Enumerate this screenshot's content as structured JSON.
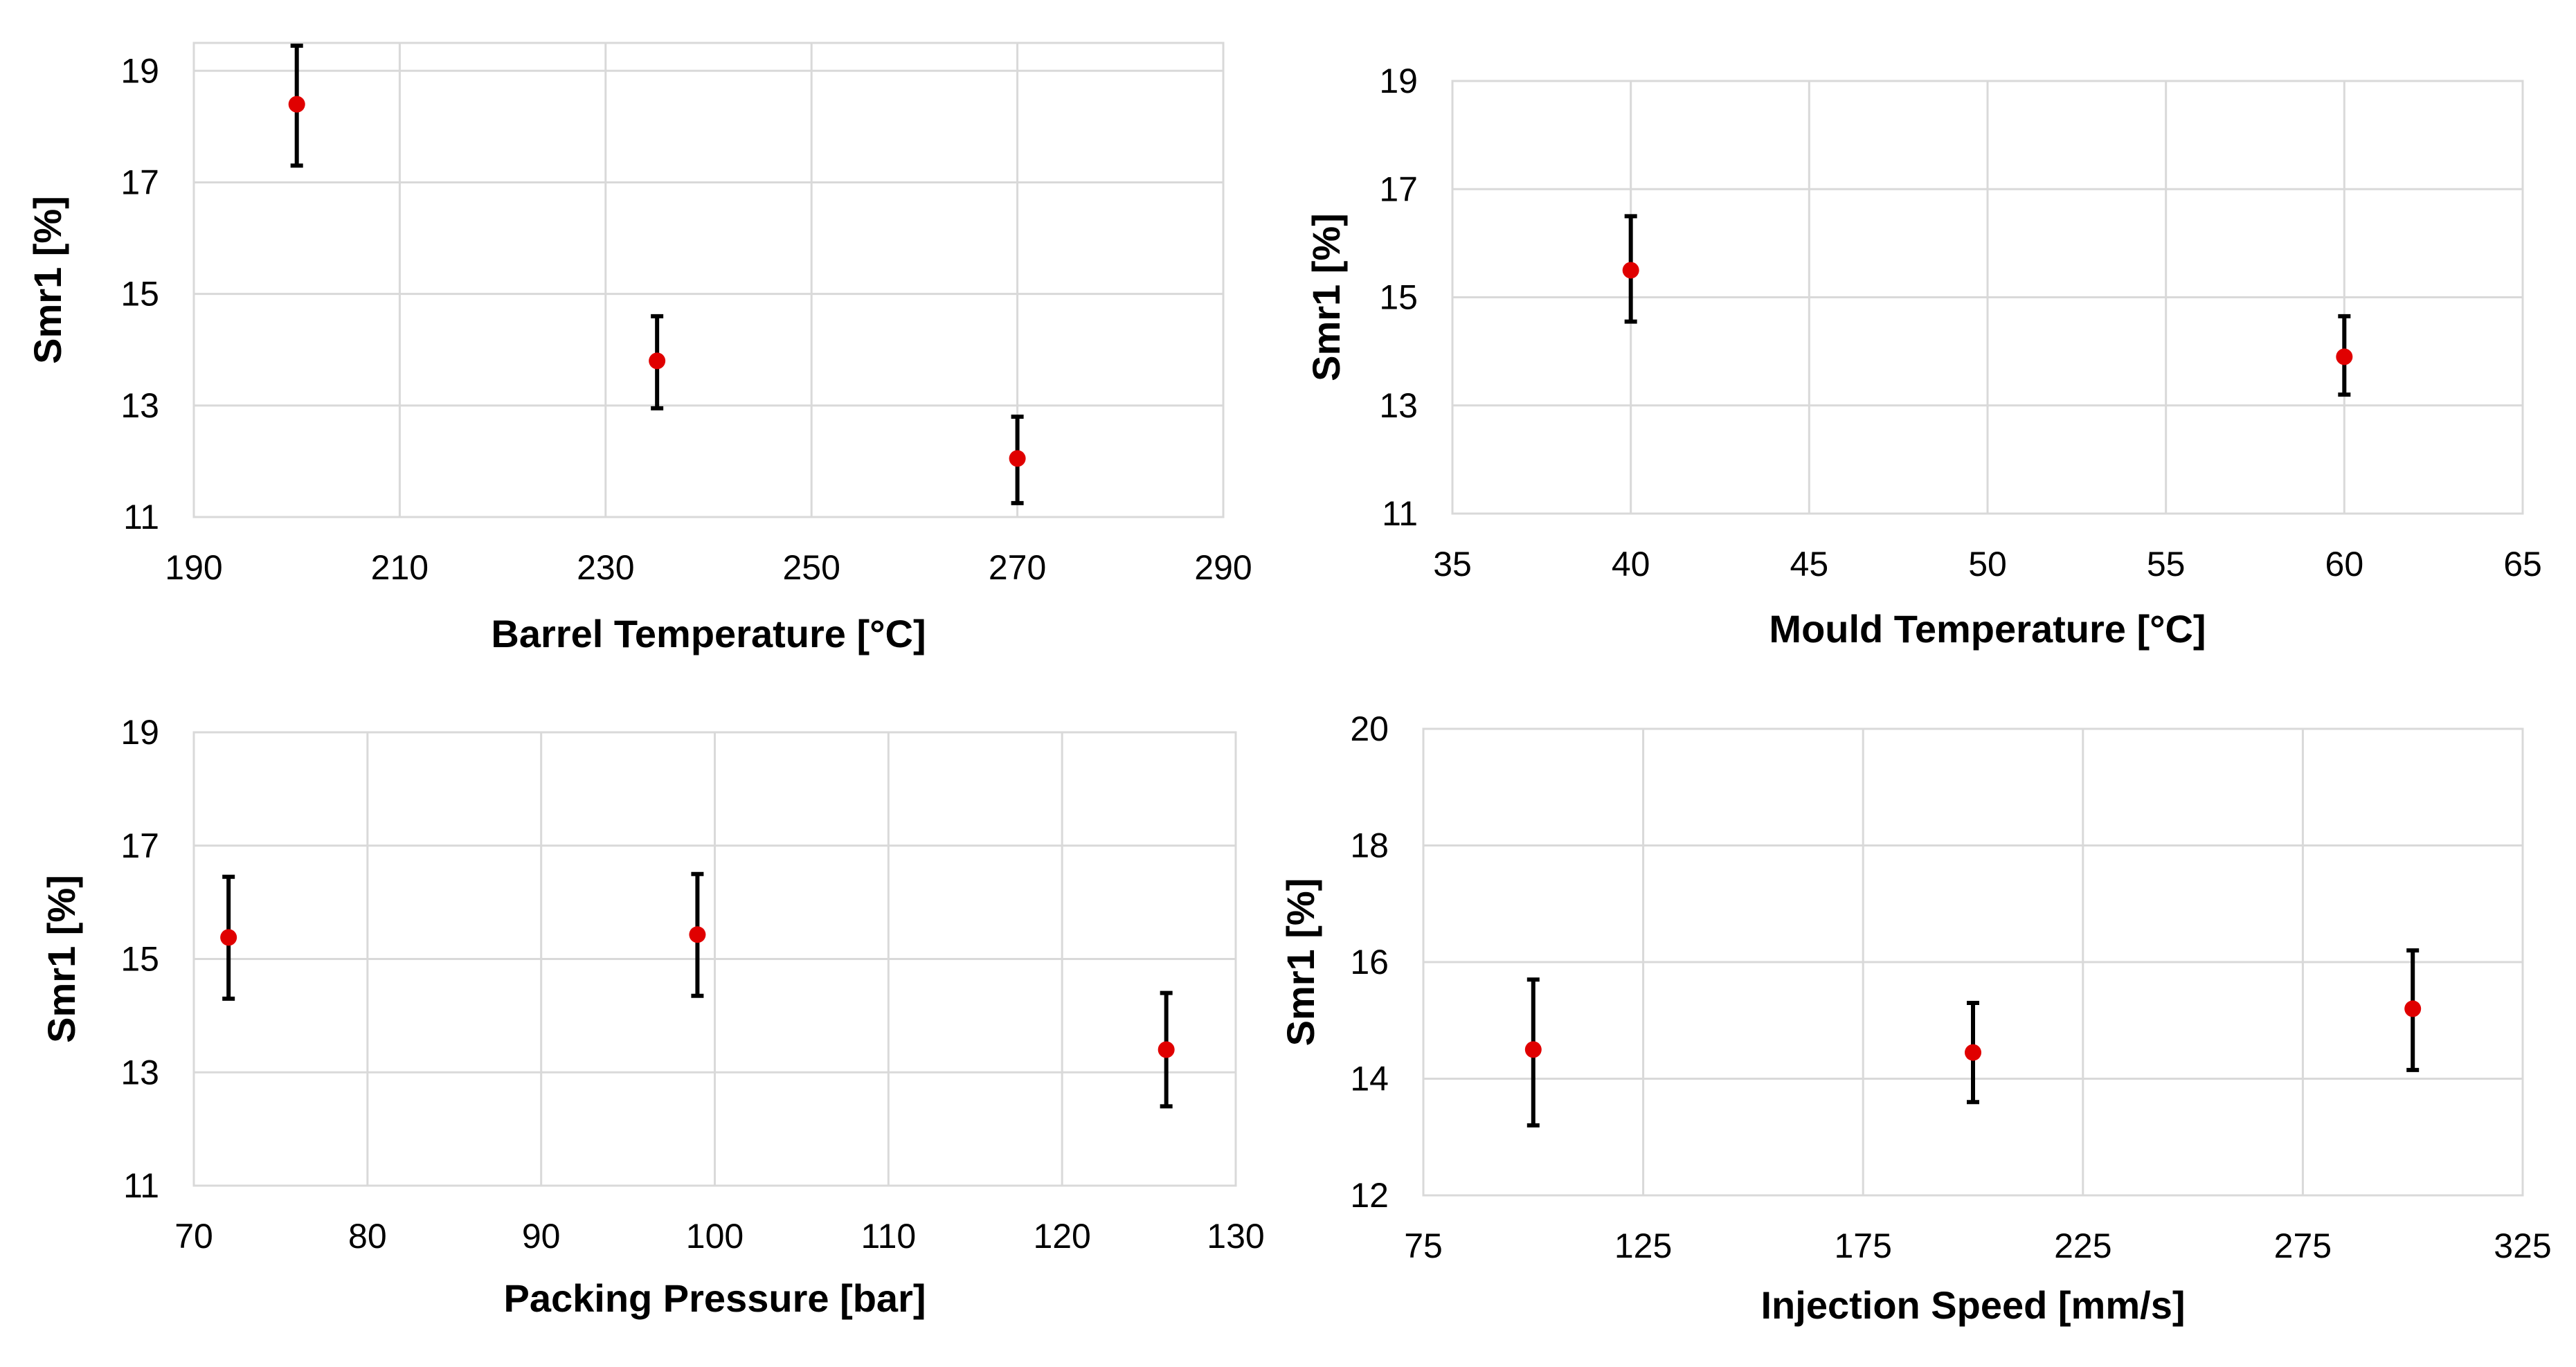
{
  "style": {
    "point_color": "#e00000",
    "error_bar_color": "#000000",
    "grid_color": "#d9d9d9"
  },
  "chart_data": [
    {
      "type": "scatter",
      "xlabel": "Barrel Temperature [°C]",
      "ylabel": "Smr1 [%]",
      "xlim": [
        190,
        290
      ],
      "ylim": [
        11,
        19.5
      ],
      "xticks": [
        190,
        210,
        230,
        250,
        270,
        290
      ],
      "yticks": [
        11,
        13,
        15,
        17,
        19
      ],
      "grid": true,
      "series": [
        {
          "x": [
            200,
            235,
            270
          ],
          "y": [
            18.4,
            13.8,
            12.05
          ],
          "yerr_low": [
            17.3,
            12.95,
            11.25
          ],
          "yerr_high": [
            19.45,
            14.6,
            12.8
          ]
        }
      ]
    },
    {
      "type": "scatter",
      "xlabel": "Mould Temperature [°C]",
      "ylabel": "Smr1 [%]",
      "xlim": [
        35,
        65
      ],
      "ylim": [
        11,
        19
      ],
      "xticks": [
        35,
        40,
        45,
        50,
        55,
        60,
        65
      ],
      "yticks": [
        11,
        13,
        15,
        17,
        19
      ],
      "grid": true,
      "series": [
        {
          "x": [
            40,
            60
          ],
          "y": [
            15.5,
            13.9
          ],
          "yerr_low": [
            14.55,
            13.2
          ],
          "yerr_high": [
            16.5,
            14.65
          ]
        }
      ]
    },
    {
      "type": "scatter",
      "xlabel": "Packing Pressure [bar]",
      "ylabel": "Smr1 [%]",
      "xlim": [
        70,
        130
      ],
      "ylim": [
        11,
        19
      ],
      "xticks": [
        70,
        80,
        90,
        100,
        110,
        120,
        130
      ],
      "yticks": [
        11,
        13,
        15,
        17,
        19
      ],
      "grid": true,
      "series": [
        {
          "x": [
            72,
            99,
            126
          ],
          "y": [
            15.38,
            15.43,
            13.4
          ],
          "yerr_low": [
            14.3,
            14.35,
            12.4
          ],
          "yerr_high": [
            16.45,
            16.5,
            14.4
          ]
        }
      ]
    },
    {
      "type": "scatter",
      "xlabel": "Injection Speed [mm/s]",
      "ylabel": "Smr1 [%]",
      "xlim": [
        75,
        325
      ],
      "ylim": [
        12,
        20
      ],
      "xticks": [
        75,
        125,
        175,
        225,
        275,
        325
      ],
      "yticks": [
        12,
        14,
        16,
        18,
        20
      ],
      "grid": true,
      "series": [
        {
          "x": [
            100,
            200,
            300
          ],
          "y": [
            14.5,
            14.45,
            15.2
          ],
          "yerr_low": [
            13.2,
            13.6,
            14.15
          ],
          "yerr_high": [
            15.7,
            15.3,
            16.2
          ]
        }
      ]
    }
  ]
}
